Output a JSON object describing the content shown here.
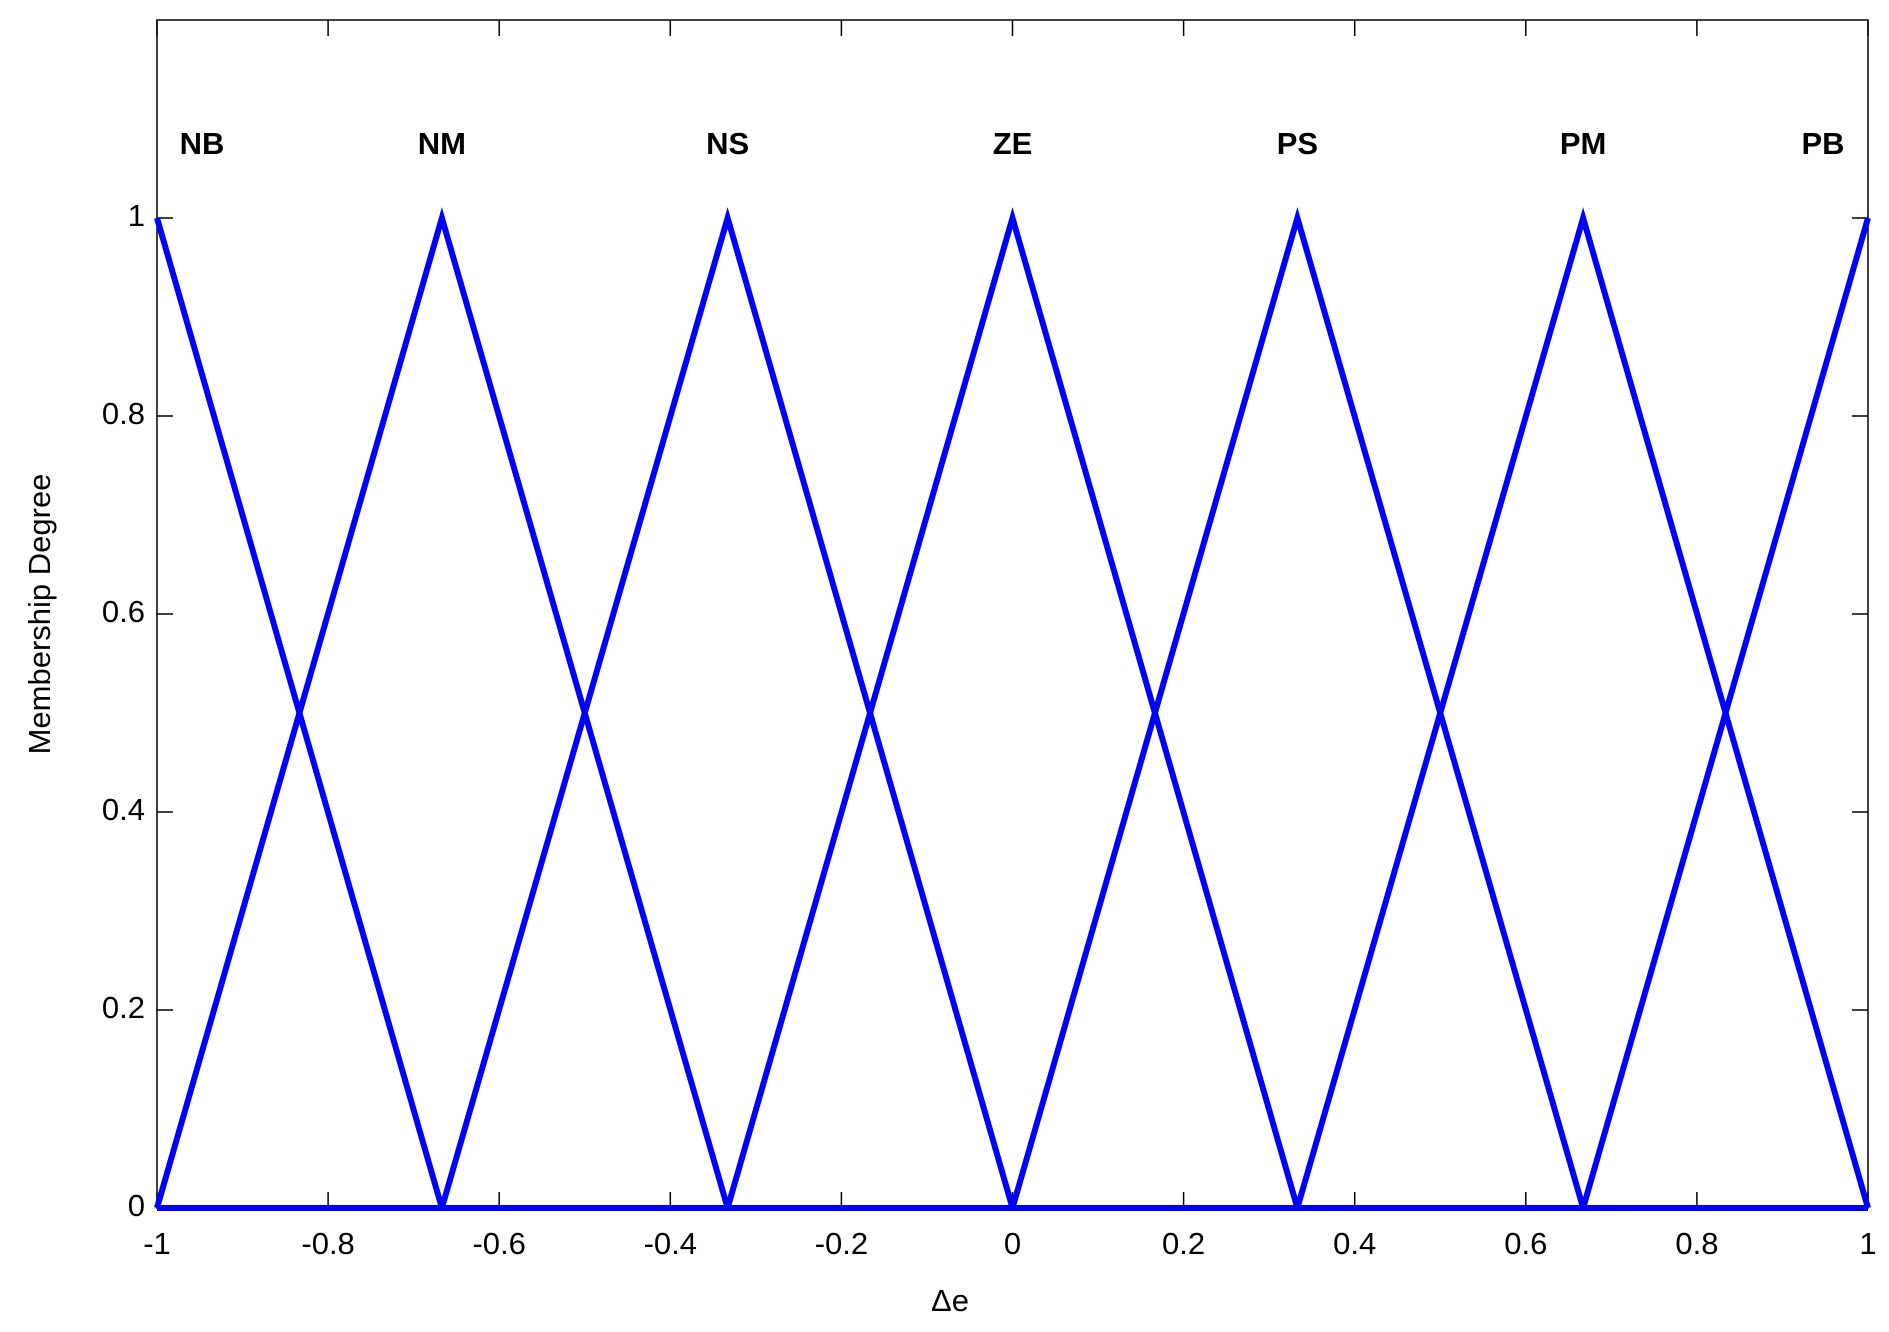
{
  "chart_data": {
    "type": "line",
    "x_label": "Δe",
    "y_label": "Membership Degree",
    "x": [
      -1,
      -0.667,
      -0.333,
      0,
      0.333,
      0.667,
      1
    ],
    "series": [
      {
        "name": "NB",
        "color": "#0000ff",
        "values": [
          1,
          0,
          0,
          0,
          0,
          0,
          0
        ]
      },
      {
        "name": "NM",
        "color": "#0000ff",
        "values": [
          0,
          1,
          0,
          0,
          0,
          0,
          0
        ]
      },
      {
        "name": "NS",
        "color": "#0000ff",
        "values": [
          0,
          0,
          1,
          0,
          0,
          0,
          0
        ]
      },
      {
        "name": "ZE",
        "color": "#0000ff",
        "values": [
          0,
          0,
          0,
          1,
          0,
          0,
          0
        ]
      },
      {
        "name": "PS",
        "color": "#0000ff",
        "values": [
          0,
          0,
          0,
          0,
          1,
          0,
          0
        ]
      },
      {
        "name": "PM",
        "color": "#0000ff",
        "values": [
          0,
          0,
          0,
          0,
          0,
          1,
          0
        ]
      },
      {
        "name": "PB",
        "color": "#0000ff",
        "values": [
          0,
          0,
          0,
          0,
          0,
          0,
          1
        ]
      }
    ],
    "xlim": [
      -1,
      1
    ],
    "ylim": [
      0,
      1.2
    ],
    "xticks": [
      -1,
      -0.8,
      -0.6,
      -0.4,
      -0.2,
      0,
      0.2,
      0.4,
      0.6,
      0.8,
      1
    ],
    "yticks": [
      0,
      0.2,
      0.4,
      0.6,
      0.8,
      1
    ],
    "grid": false
  }
}
